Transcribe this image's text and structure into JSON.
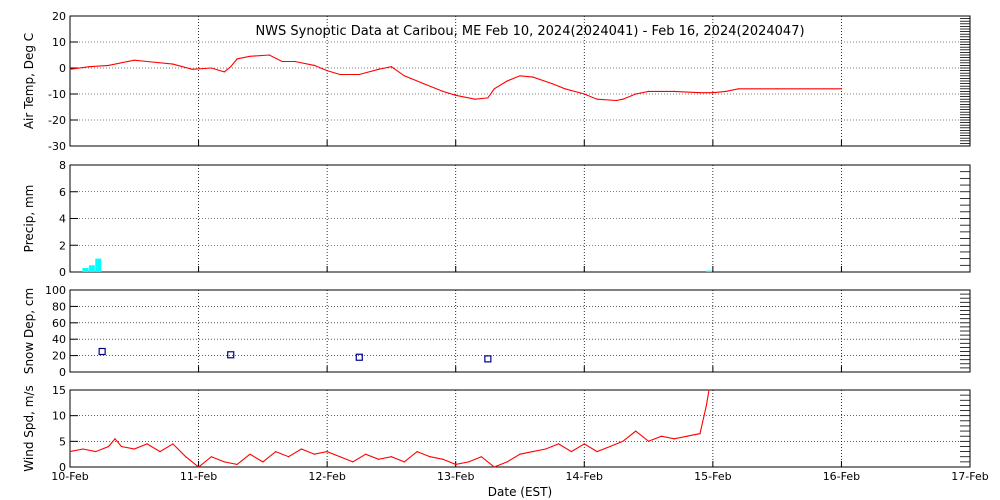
{
  "title": "NWS Synoptic Data at Caribou, ME   Feb 10, 2024(2024041) - Feb 16, 2024(2024047)",
  "x_axis": {
    "label": "Date (EST)",
    "tick_labels": [
      "10-Feb",
      "11-Feb",
      "12-Feb",
      "13-Feb",
      "14-Feb",
      "15-Feb",
      "16-Feb",
      "17-Feb"
    ],
    "range_days": [
      0,
      7
    ]
  },
  "colors": {
    "line": "#ff0000",
    "precip": "#00ffff",
    "snow_marker": "#00008b",
    "grid": "#000000"
  },
  "chart_data": [
    {
      "type": "line",
      "panel": "air_temp",
      "ylabel": "Air Temp, Deg C",
      "ylim": [
        -30,
        20
      ],
      "yticks": [
        20,
        10,
        0,
        -10,
        -20,
        -30
      ],
      "x": [
        0,
        0.15,
        0.3,
        0.5,
        0.6,
        0.8,
        0.95,
        1.1,
        1.2,
        1.25,
        1.3,
        1.4,
        1.55,
        1.65,
        1.75,
        1.9,
        2.0,
        2.1,
        2.25,
        2.4,
        2.5,
        2.6,
        2.65,
        2.75,
        2.9,
        3.0,
        3.15,
        3.25,
        3.3,
        3.4,
        3.5,
        3.6,
        3.75,
        3.85,
        4.0,
        4.1,
        4.25,
        4.3,
        4.4,
        4.5,
        4.7,
        4.9,
        5.0,
        5.1,
        5.2,
        5.5,
        6.0
      ],
      "series": [
        {
          "values": [
            -0.5,
            0.5,
            1.0,
            3.0,
            2.5,
            1.5,
            -0.5,
            0.0,
            -1.5,
            0.5,
            3.5,
            4.5,
            5.0,
            2.5,
            2.5,
            1.0,
            -1.0,
            -2.5,
            -2.5,
            -0.5,
            0.5,
            -3.0,
            -4.0,
            -6.0,
            -9.0,
            -10.5,
            -12.0,
            -11.5,
            -8.0,
            -5.0,
            -3.0,
            -3.5,
            -6.0,
            -8.0,
            -10.0,
            -12.0,
            -12.5,
            -12.0,
            -10.0,
            -9.0,
            -9.0,
            -9.5,
            -9.5,
            -9.0,
            -8.0,
            -8.0,
            -8.0
          ]
        }
      ]
    },
    {
      "type": "bar",
      "panel": "precip",
      "ylabel": "Precip, mm",
      "ylim": [
        0,
        8
      ],
      "yticks": [
        8,
        6,
        4,
        2,
        0
      ],
      "categories": [
        0.12,
        0.17,
        0.22,
        4.97
      ],
      "values": [
        0.3,
        0.5,
        1.0,
        0.1
      ]
    },
    {
      "type": "scatter",
      "panel": "snow_depth",
      "ylabel": "Snow Dep, cm",
      "ylim": [
        0,
        100
      ],
      "yticks": [
        100,
        80,
        60,
        40,
        20,
        0
      ],
      "x": [
        0.25,
        1.25,
        2.25,
        3.25
      ],
      "y": [
        25,
        21,
        18,
        16
      ]
    },
    {
      "type": "line",
      "panel": "wind_speed",
      "ylabel": "Wind Spd, m/s",
      "ylim": [
        0,
        15
      ],
      "yticks": [
        15,
        10,
        5,
        0
      ],
      "x": [
        0,
        0.1,
        0.2,
        0.3,
        0.35,
        0.4,
        0.5,
        0.6,
        0.7,
        0.8,
        0.9,
        1.0,
        1.1,
        1.2,
        1.3,
        1.4,
        1.5,
        1.6,
        1.7,
        1.8,
        1.9,
        2.0,
        2.1,
        2.2,
        2.3,
        2.4,
        2.5,
        2.6,
        2.7,
        2.8,
        2.9,
        3.0,
        3.1,
        3.2,
        3.3,
        3.4,
        3.5,
        3.6,
        3.7,
        3.8,
        3.9,
        4.0,
        4.1,
        4.2,
        4.3,
        4.4,
        4.5,
        4.6,
        4.7,
        4.8,
        4.9,
        4.95,
        4.97
      ],
      "series": [
        {
          "values": [
            3.0,
            3.5,
            3.0,
            4.0,
            5.5,
            4.0,
            3.5,
            4.5,
            3.0,
            4.5,
            2.0,
            0.0,
            2.0,
            1.0,
            0.5,
            2.5,
            1.0,
            3.0,
            2.0,
            3.5,
            2.5,
            3.0,
            2.0,
            1.0,
            2.5,
            1.5,
            2.0,
            1.0,
            3.0,
            2.0,
            1.5,
            0.5,
            1.0,
            2.0,
            0.0,
            1.0,
            2.5,
            3.0,
            3.5,
            4.5,
            3.0,
            4.5,
            3.0,
            4.0,
            5.0,
            7.0,
            5.0,
            6.0,
            5.5,
            6.0,
            6.5,
            12.0,
            15.0
          ]
        }
      ]
    }
  ]
}
